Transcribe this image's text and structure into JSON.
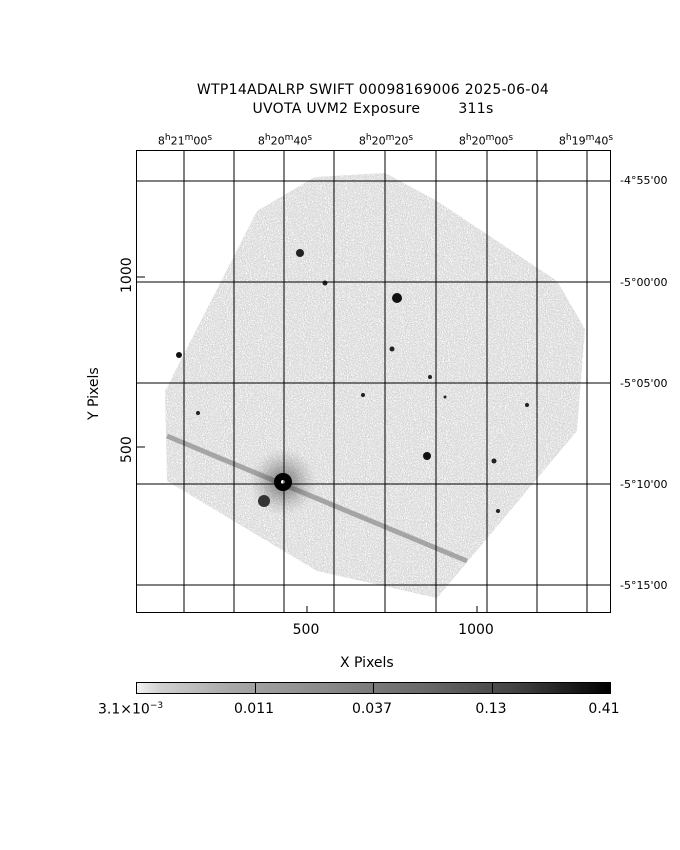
{
  "header": {
    "line1": "WTP14ADALRP SWIFT 00098169006 2025-06-04",
    "line2": "UVOTA UVM2 Exposure        311s"
  },
  "ra_labels": [
    {
      "h": "8",
      "m": "21",
      "s": "00"
    },
    {
      "h": "8",
      "m": "20",
      "s": "40"
    },
    {
      "h": "8",
      "m": "20",
      "s": "20"
    },
    {
      "h": "8",
      "m": "20",
      "s": "00"
    },
    {
      "h": "8",
      "m": "19",
      "s": "40"
    }
  ],
  "dec_labels": [
    "-4°55'00",
    "-5°00'00",
    "-5°05'00",
    "-5°10'00",
    "-5°15'00"
  ],
  "x_axis": {
    "label": "X Pixels",
    "ticks": [
      "500",
      "1000"
    ]
  },
  "y_axis": {
    "label": "Y Pixels",
    "ticks": [
      "500",
      "1000"
    ]
  },
  "colorbar": {
    "labels": [
      "3.1×10",
      "0.011",
      "0.037",
      "0.13",
      "0.41"
    ],
    "first_exponent": "−3"
  },
  "colors": {
    "background": "#ffffff",
    "image_gray": "#8c8c8c",
    "grid": "#000000"
  }
}
